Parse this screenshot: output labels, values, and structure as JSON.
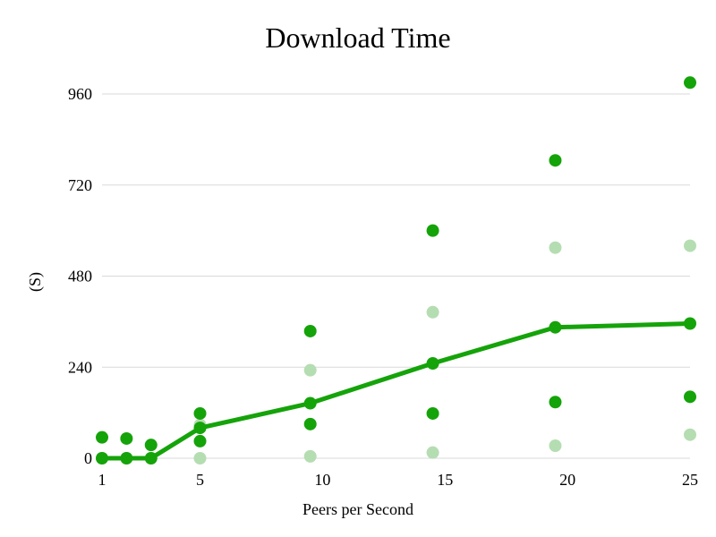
{
  "chart_data": {
    "type": "scatter",
    "title": "Download Time",
    "xlabel": "Peers per Second",
    "ylabel": "(S)",
    "x_ticks": [
      "1",
      "5",
      "10",
      "15",
      "20",
      "25"
    ],
    "y_ticks": [
      "0",
      "240",
      "480",
      "720",
      "960"
    ],
    "xlim": [
      1,
      25
    ],
    "ylim": [
      0,
      960
    ],
    "grid": true,
    "colors": {
      "dark": "#15a30a",
      "light": "#b5ddb2",
      "line": "#15a30a"
    },
    "series": [
      {
        "style": "line-with-markers",
        "color_key": "line",
        "x": [
          1,
          2,
          3,
          5,
          9.5,
          14.5,
          19.5,
          25
        ],
        "y": [
          0,
          0,
          0,
          80,
          145,
          250,
          345,
          355
        ]
      },
      {
        "style": "markers",
        "color_key": "dark",
        "x": [
          1,
          2,
          3,
          5,
          5,
          9.5,
          9.5,
          14.5,
          14.5,
          19.5,
          19.5,
          25,
          25
        ],
        "y": [
          55,
          52,
          35,
          118,
          45,
          335,
          90,
          600,
          118,
          785,
          148,
          990,
          162
        ]
      },
      {
        "style": "markers",
        "color_key": "light",
        "x": [
          1,
          2,
          3,
          5,
          5,
          9.5,
          9.5,
          14.5,
          14.5,
          19.5,
          19.5,
          25,
          25
        ],
        "y": [
          0,
          0,
          0,
          88,
          0,
          232,
          5,
          385,
          15,
          555,
          33,
          560,
          62
        ]
      }
    ]
  }
}
